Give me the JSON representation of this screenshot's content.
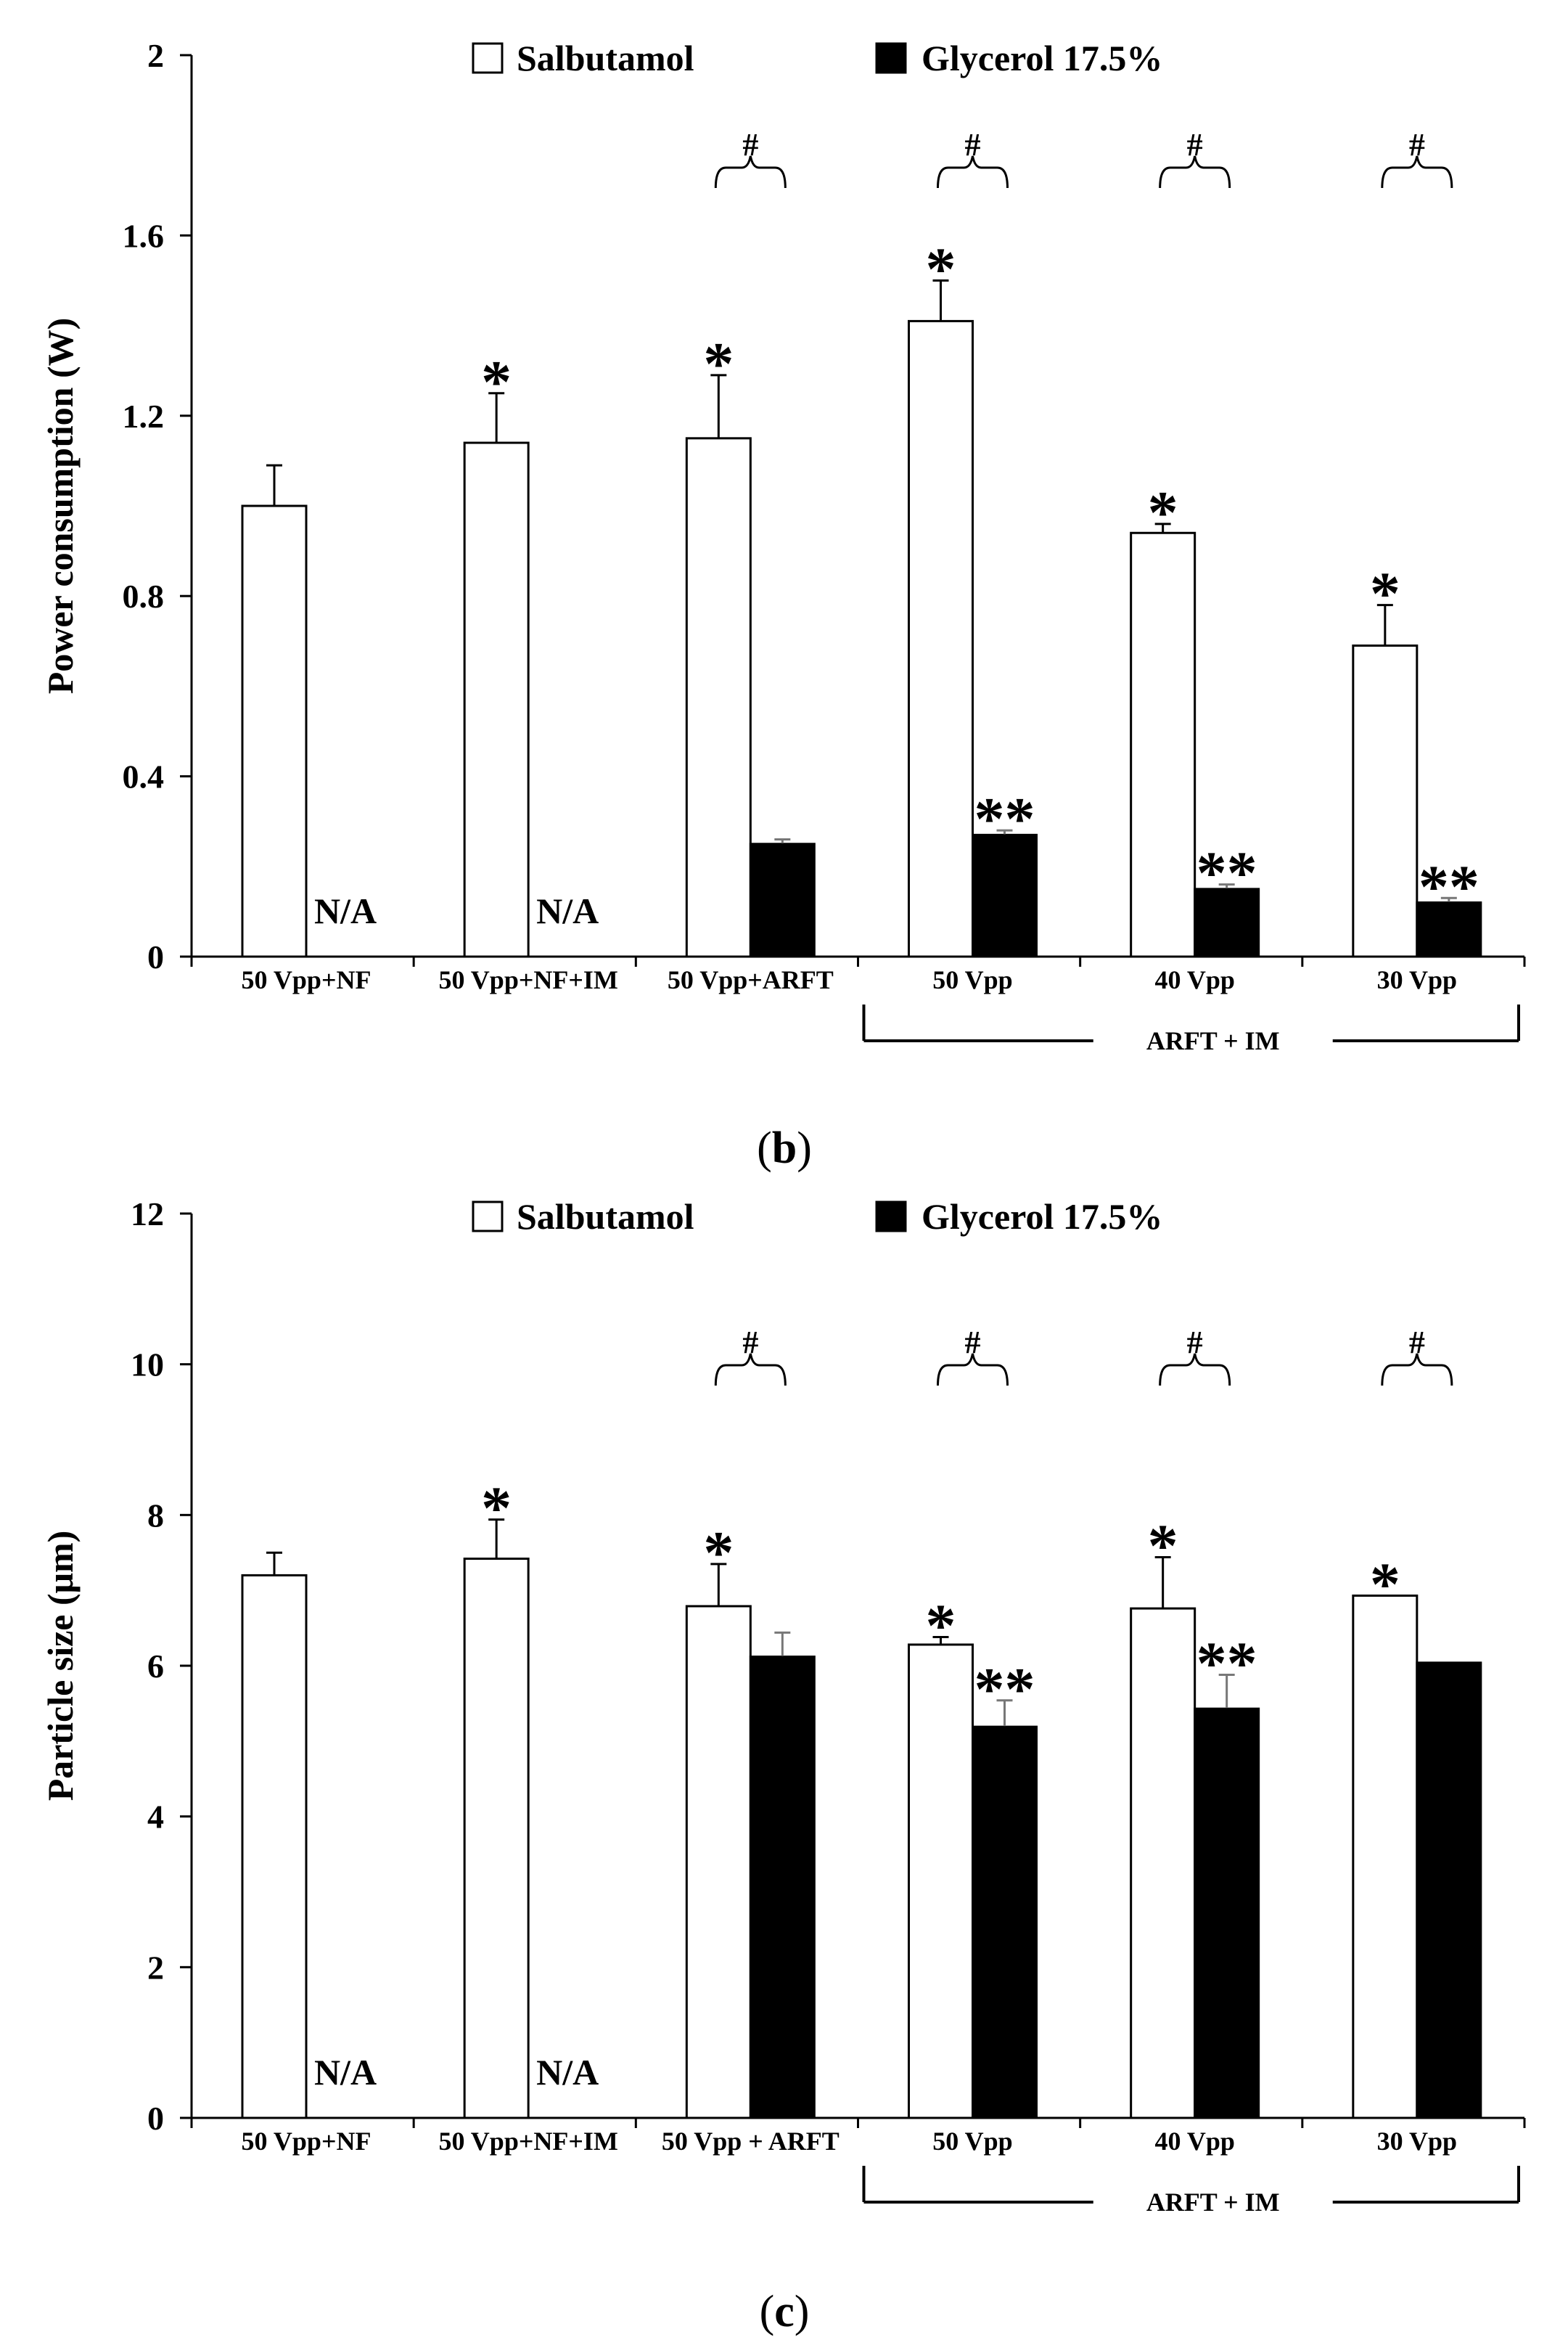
{
  "chart_data": [
    {
      "type": "bar",
      "panel": "b",
      "ylabel": "Power consumption (W)",
      "ylim": [
        0,
        2
      ],
      "yticks": [
        "0",
        "0.4",
        "0.8",
        "1.2",
        "1.6",
        "2"
      ],
      "yticks_values": [
        0,
        0.4,
        0.8,
        1.2,
        1.6,
        2
      ],
      "categories": [
        "50 Vpp+NF",
        "50 Vpp+NF+IM",
        "50 Vpp+ARFT",
        "50 Vpp",
        "40 Vpp",
        "30 Vpp"
      ],
      "group_label": "ARFT + IM",
      "legend_placement": "top",
      "series": [
        {
          "name": "Salbutamol",
          "color": "#ffffff",
          "values": [
            1.0,
            1.14,
            1.15,
            1.41,
            0.94,
            0.69
          ],
          "errors": [
            0.09,
            0.11,
            0.14,
            0.09,
            0.02,
            0.09
          ]
        },
        {
          "name": "Glycerol 17.5%",
          "color": "#000000",
          "values": [
            null,
            null,
            0.25,
            0.27,
            0.15,
            0.12
          ],
          "errors": [
            null,
            null,
            0.01,
            0.01,
            0.01,
            0.01
          ]
        }
      ],
      "na_text": [
        "N/A",
        "N/A",
        "",
        "",
        "",
        ""
      ],
      "star_white": [
        "",
        "*",
        "*",
        "*",
        "*",
        "*"
      ],
      "star_black": [
        "",
        "",
        "",
        "**",
        "**",
        "**"
      ],
      "hash": [
        "",
        "",
        "#",
        "#",
        "#",
        "#"
      ]
    },
    {
      "type": "bar",
      "panel": "c",
      "ylabel": "Particle size (μm)",
      "ylim": [
        0,
        12
      ],
      "yticks": [
        "0",
        "2",
        "4",
        "6",
        "8",
        "10",
        "12"
      ],
      "yticks_values": [
        0,
        2,
        4,
        6,
        8,
        10,
        12
      ],
      "categories": [
        "50 Vpp+NF",
        "50 Vpp+NF+IM",
        "50 Vpp + ARFT",
        "50 Vpp",
        "40 Vpp",
        "30 Vpp"
      ],
      "group_label": "ARFT + IM",
      "legend_placement": "top",
      "series": [
        {
          "name": "Salbutamol",
          "color": "#ffffff",
          "values": [
            7.2,
            7.42,
            6.79,
            6.28,
            6.76,
            6.93
          ],
          "errors": [
            0.3,
            0.52,
            0.56,
            0.1,
            0.68,
            null
          ]
        },
        {
          "name": "Glycerol 17.5%",
          "color": "#000000",
          "values": [
            null,
            null,
            6.12,
            5.19,
            5.43,
            6.04
          ],
          "errors": [
            null,
            null,
            0.32,
            0.35,
            0.45,
            null
          ]
        }
      ],
      "na_text": [
        "N/A",
        "N/A",
        "",
        "",
        "",
        ""
      ],
      "star_white": [
        "",
        "*",
        "*",
        "*",
        "*",
        "*"
      ],
      "star_black": [
        "",
        "",
        "",
        "**",
        "**",
        ""
      ],
      "hash": [
        "",
        "",
        "#",
        "#",
        "#",
        "#"
      ]
    }
  ],
  "panel_labels": {
    "b": "b",
    "c": "c"
  }
}
